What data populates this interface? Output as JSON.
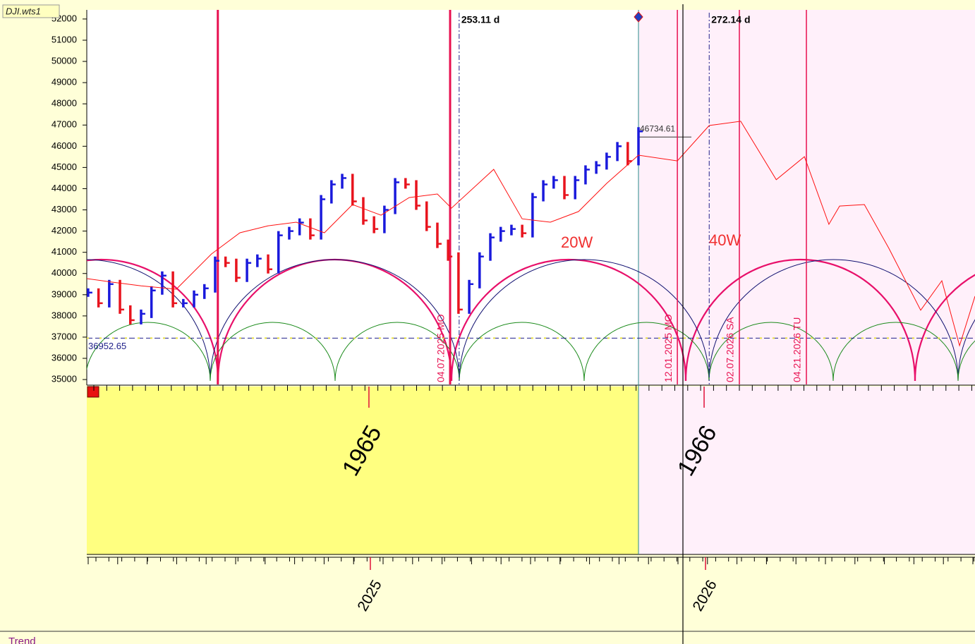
{
  "window_tag": "DJI.wts1",
  "panel_label": "Trend",
  "chart_data": {
    "type": "bar-line",
    "xlim": [
      2024.154,
      2026.804
    ],
    "xticks": [
      2025,
      2026
    ],
    "upper_x_labels": [
      "1965",
      "1966"
    ],
    "ylim": [
      34770,
      52430
    ],
    "yticks": [
      35000,
      36000,
      37000,
      38000,
      39000,
      40000,
      41000,
      42000,
      43000,
      44000,
      45000,
      46000,
      47000,
      48000,
      49000,
      50000,
      51000,
      52000
    ],
    "series": [
      {
        "up_color": "#1a1adc",
        "down_color": "#e8141e",
        "x": [
          2024.158,
          2024.189,
          2024.221,
          2024.253,
          2024.284,
          2024.316,
          2024.347,
          2024.379,
          2024.411,
          2024.442,
          2024.474,
          2024.505,
          2024.537,
          2024.568,
          2024.6,
          2024.632,
          2024.663,
          2024.695,
          2024.726,
          2024.758,
          2024.789,
          2024.821,
          2024.853,
          2024.884,
          2024.916,
          2024.947,
          2024.979,
          2025.011,
          2025.042,
          2025.074,
          2025.105,
          2025.137,
          2025.168,
          2025.2,
          2025.232,
          2025.263,
          2025.295,
          2025.326,
          2025.358,
          2025.389,
          2025.421,
          2025.453,
          2025.484,
          2025.516,
          2025.547,
          2025.579,
          2025.611,
          2025.642,
          2025.674,
          2025.705,
          2025.737,
          2025.768,
          2025.8
        ],
        "values": [
          39100,
          38600,
          39500,
          38300,
          37800,
          38100,
          39200,
          39900,
          38600,
          38600,
          39000,
          39300,
          40600,
          40500,
          39800,
          40500,
          40700,
          40200,
          41800,
          42000,
          42400,
          41800,
          43500,
          44200,
          44500,
          43400,
          42500,
          42100,
          43000,
          44300,
          44200,
          43200,
          42200,
          41400,
          40800,
          38300,
          39500,
          40800,
          41700,
          42000,
          42100,
          41900,
          43600,
          44200,
          44400,
          43700,
          44400,
          44900,
          45100,
          45500,
          46000,
          45300,
          46700
        ]
      },
      {
        "color": "#ff1010",
        "x": [
          2024.154,
          2024.232,
          2024.316,
          2024.421,
          2024.526,
          2024.611,
          2024.695,
          2024.779,
          2024.863,
          2024.947,
          2025.032,
          2025.116,
          2025.2,
          2025.242,
          2025.368,
          2025.453,
          2025.537,
          2025.621,
          2025.705,
          2025.8,
          2025.916,
          2026.011,
          2026.105,
          2026.211,
          2026.295,
          2026.368,
          2026.4,
          2026.474,
          2026.547,
          2026.642,
          2026.705,
          2026.758,
          2026.804
        ],
        "values": [
          39760,
          39590,
          39420,
          39260,
          40920,
          41920,
          42250,
          42420,
          41920,
          43250,
          42750,
          43580,
          43750,
          43080,
          44910,
          42580,
          42420,
          42920,
          44250,
          45580,
          45310,
          46980,
          47180,
          44420,
          45510,
          42320,
          43180,
          43250,
          41190,
          38270,
          39660,
          36600,
          38930
        ]
      }
    ],
    "levels": [
      36952.65,
      46734.61
    ],
    "red_lines": [
      {
        "x": 2024.545
      },
      {
        "x": 2025.238,
        "label": "04.07.2025 MO"
      },
      {
        "x": 2025.916,
        "label": "12.01.2025 MO"
      },
      {
        "x": 2026.101,
        "label": "02.07.2026 SA"
      },
      {
        "x": 2026.301,
        "label": "04.21.2026 TU"
      }
    ],
    "cycle_lines": [
      {
        "x": 2025.265,
        "label": "253.11 d"
      },
      {
        "x": 2026.011,
        "label": "272.14 d"
      }
    ],
    "cycle_labels": [
      "20W",
      "40W"
    ]
  }
}
